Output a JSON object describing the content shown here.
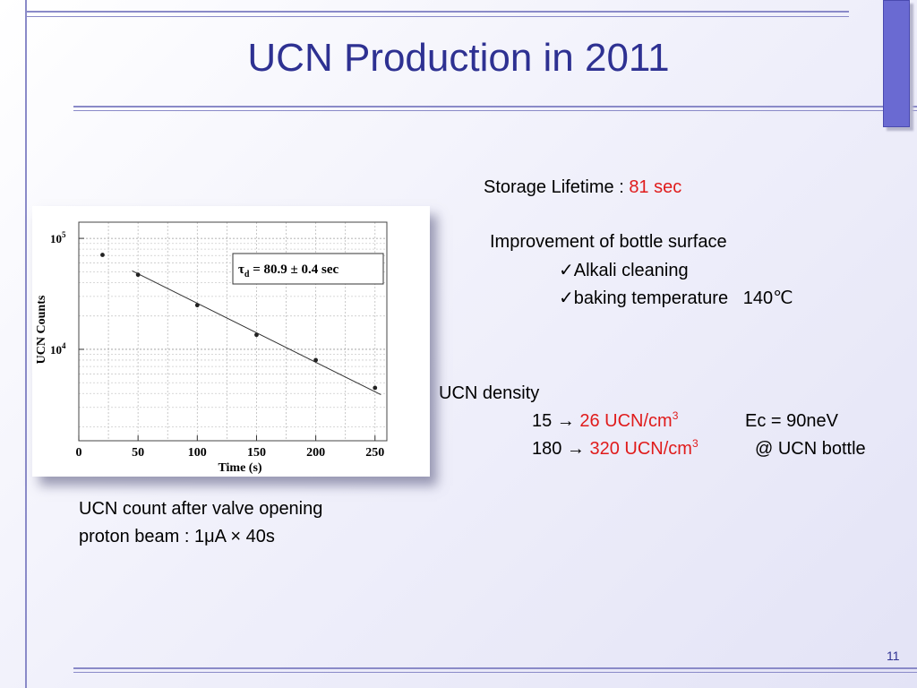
{
  "slide": {
    "title": "UCN Production in 2011",
    "page_number": "11"
  },
  "storage": {
    "label": "Storage Lifetime  : ",
    "value": "81 sec"
  },
  "improvement": {
    "heading": "Improvement of bottle surface",
    "items": [
      "Alkali cleaning",
      "baking temperature   140℃"
    ],
    "check": "✓"
  },
  "density": {
    "heading": "UCN density",
    "row1": {
      "from": "15 → ",
      "value": "26 UCN/cm",
      "exp": "3",
      "note": "Ec = 90neV"
    },
    "row2": {
      "from": "180 → ",
      "value": "320 UCN/cm",
      "exp": "3",
      "note": "@ UCN bottle"
    }
  },
  "caption": {
    "line1": "UCN count after valve opening",
    "line2": "proton beam : 1μA × 40s"
  },
  "colors": {
    "title": "#2e3192",
    "highlight": "#e01b1b",
    "rule": "#8a8ac8"
  },
  "chart_data": {
    "type": "scatter",
    "xlabel": "Time (s)",
    "ylabel": "UCN Counts",
    "x_ticks": [
      "0",
      "50",
      "100",
      "150",
      "200",
      "250"
    ],
    "y_ticks": [
      {
        "base": "10",
        "exp": "5",
        "value": 100000
      },
      {
        "base": "10",
        "exp": "4",
        "value": 10000
      }
    ],
    "xlim": [
      0,
      260
    ],
    "ylim": [
      1500,
      140000
    ],
    "log_y": true,
    "grid": true,
    "annotation": {
      "symbol": "τ",
      "sub": "d",
      "text": " = 80.9 ± 0.4 sec"
    },
    "points": [
      {
        "x": 20,
        "y": 71000
      },
      {
        "x": 50,
        "y": 47000
      },
      {
        "x": 100,
        "y": 25000
      },
      {
        "x": 150,
        "y": 13500
      },
      {
        "x": 200,
        "y": 8000
      },
      {
        "x": 250,
        "y": 4500
      }
    ],
    "fit": {
      "x": [
        45,
        255
      ],
      "y": [
        51000,
        3900
      ]
    }
  }
}
